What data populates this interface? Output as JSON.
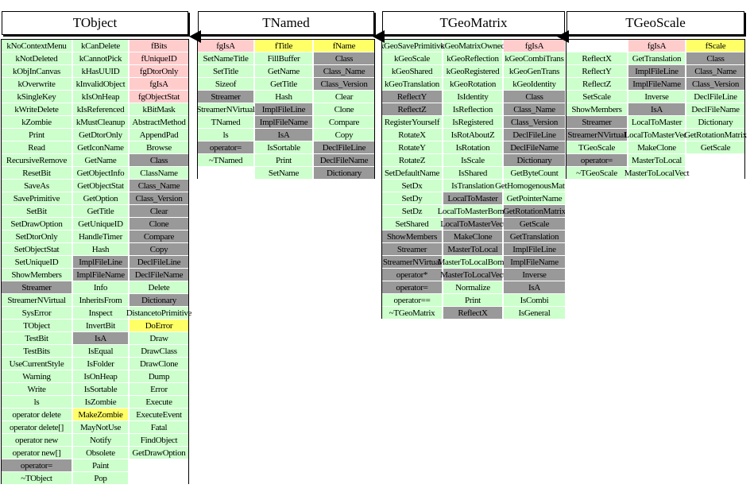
{
  "colors": {
    "g": "#ccffcc",
    "G": "#999999",
    "p": "#ffcccc",
    "y": "#ffff66",
    "w": "transparent"
  },
  "classes": [
    {
      "title": "TObject",
      "columns": [
        [
          [
            "kNoContextMenu",
            "g"
          ],
          [
            "kNotDeleted",
            "g"
          ],
          [
            "kObjInCanvas",
            "g"
          ],
          [
            "kOverwrite",
            "g"
          ],
          [
            "kSingleKey",
            "g"
          ],
          [
            "kWriteDelete",
            "g"
          ],
          [
            "kZombie",
            "g"
          ],
          [
            "Print",
            "g"
          ],
          [
            "Read",
            "g"
          ],
          [
            "RecursiveRemove",
            "g"
          ],
          [
            "ResetBit",
            "g"
          ],
          [
            "SaveAs",
            "g"
          ],
          [
            "SavePrimitive",
            "g"
          ],
          [
            "SetBit",
            "g"
          ],
          [
            "SetDrawOption",
            "g"
          ],
          [
            "SetDtorOnly",
            "g"
          ],
          [
            "SetObjectStat",
            "g"
          ],
          [
            "SetUniqueID",
            "g"
          ],
          [
            "ShowMembers",
            "g"
          ],
          [
            "Streamer",
            "G"
          ],
          [
            "StreamerNVirtual",
            "g"
          ],
          [
            "SysError",
            "g"
          ],
          [
            "TObject",
            "g"
          ],
          [
            "TestBit",
            "g"
          ],
          [
            "TestBits",
            "g"
          ],
          [
            "UseCurrentStyle",
            "g"
          ],
          [
            "Warning",
            "g"
          ],
          [
            "Write",
            "g"
          ],
          [
            "ls",
            "g"
          ],
          [
            "operator delete",
            "g"
          ],
          [
            "operator delete[]",
            "g"
          ],
          [
            "operator new",
            "g"
          ],
          [
            "operator new[]",
            "g"
          ],
          [
            "operator=",
            "G"
          ],
          [
            "~TObject",
            "g"
          ]
        ],
        [
          [
            "kCanDelete",
            "g"
          ],
          [
            "kCannotPick",
            "g"
          ],
          [
            "kHasUUID",
            "g"
          ],
          [
            "kInvalidObject",
            "g"
          ],
          [
            "kIsOnHeap",
            "g"
          ],
          [
            "kIsReferenced",
            "g"
          ],
          [
            "kMustCleanup",
            "g"
          ],
          [
            "GetDtorOnly",
            "g"
          ],
          [
            "GetIconName",
            "g"
          ],
          [
            "GetName",
            "g"
          ],
          [
            "GetObjectInfo",
            "g"
          ],
          [
            "GetObjectStat",
            "g"
          ],
          [
            "GetOption",
            "g"
          ],
          [
            "GetTitle",
            "g"
          ],
          [
            "GetUniqueID",
            "g"
          ],
          [
            "HandleTimer",
            "g"
          ],
          [
            "Hash",
            "g"
          ],
          [
            "ImplFileLine",
            "G"
          ],
          [
            "ImplFileName",
            "G"
          ],
          [
            "Info",
            "g"
          ],
          [
            "InheritsFrom",
            "g"
          ],
          [
            "Inspect",
            "g"
          ],
          [
            "InvertBit",
            "g"
          ],
          [
            "IsA",
            "G"
          ],
          [
            "IsEqual",
            "g"
          ],
          [
            "IsFolder",
            "g"
          ],
          [
            "IsOnHeap",
            "g"
          ],
          [
            "IsSortable",
            "g"
          ],
          [
            "IsZombie",
            "g"
          ],
          [
            "MakeZombie",
            "y"
          ],
          [
            "MayNotUse",
            "g"
          ],
          [
            "Notify",
            "g"
          ],
          [
            "Obsolete",
            "g"
          ],
          [
            "Paint",
            "g"
          ],
          [
            "Pop",
            "g"
          ]
        ],
        [
          [
            "fBits",
            "p"
          ],
          [
            "fUniqueID",
            "p"
          ],
          [
            "fgDtorOnly",
            "p"
          ],
          [
            "fgIsA",
            "p"
          ],
          [
            "fgObjectStat",
            "p"
          ],
          [
            "kBitMask",
            "g"
          ],
          [
            "AbstractMethod",
            "g"
          ],
          [
            "AppendPad",
            "g"
          ],
          [
            "Browse",
            "g"
          ],
          [
            "Class",
            "G"
          ],
          [
            "ClassName",
            "g"
          ],
          [
            "Class_Name",
            "G"
          ],
          [
            "Class_Version",
            "G"
          ],
          [
            "Clear",
            "G"
          ],
          [
            "Clone",
            "G"
          ],
          [
            "Compare",
            "G"
          ],
          [
            "Copy",
            "G"
          ],
          [
            "DeclFileLine",
            "G"
          ],
          [
            "DeclFileName",
            "G"
          ],
          [
            "Delete",
            "g"
          ],
          [
            "Dictionary",
            "G"
          ],
          [
            "DistancetoPrimitive",
            "g"
          ],
          [
            "DoError",
            "y"
          ],
          [
            "Draw",
            "g"
          ],
          [
            "DrawClass",
            "g"
          ],
          [
            "DrawClone",
            "g"
          ],
          [
            "Dump",
            "g"
          ],
          [
            "Error",
            "g"
          ],
          [
            "Execute",
            "g"
          ],
          [
            "ExecuteEvent",
            "g"
          ],
          [
            "Fatal",
            "g"
          ],
          [
            "FindObject",
            "g"
          ],
          [
            "GetDrawOption",
            "g"
          ],
          [
            "",
            "w"
          ],
          [
            "",
            "w"
          ]
        ]
      ]
    },
    {
      "title": "TNamed",
      "columns": [
        [
          [
            "fgIsA",
            "p"
          ],
          [
            "SetNameTitle",
            "g"
          ],
          [
            "SetTitle",
            "g"
          ],
          [
            "Sizeof",
            "g"
          ],
          [
            "Streamer",
            "G"
          ],
          [
            "StreamerNVirtual",
            "g"
          ],
          [
            "TNamed",
            "g"
          ],
          [
            "ls",
            "g"
          ],
          [
            "operator=",
            "G"
          ],
          [
            "~TNamed",
            "g"
          ],
          [
            "",
            "w"
          ]
        ],
        [
          [
            "fTitle",
            "y"
          ],
          [
            "FillBuffer",
            "g"
          ],
          [
            "GetName",
            "g"
          ],
          [
            "GetTitle",
            "g"
          ],
          [
            "Hash",
            "g"
          ],
          [
            "ImplFileLine",
            "G"
          ],
          [
            "ImplFileName",
            "G"
          ],
          [
            "IsA",
            "G"
          ],
          [
            "IsSortable",
            "g"
          ],
          [
            "Print",
            "g"
          ],
          [
            "SetName",
            "g"
          ]
        ],
        [
          [
            "fName",
            "y"
          ],
          [
            "Class",
            "G"
          ],
          [
            "Class_Name",
            "G"
          ],
          [
            "Class_Version",
            "G"
          ],
          [
            "Clear",
            "g"
          ],
          [
            "Clone",
            "g"
          ],
          [
            "Compare",
            "g"
          ],
          [
            "Copy",
            "g"
          ],
          [
            "DeclFileLine",
            "G"
          ],
          [
            "DeclFileName",
            "G"
          ],
          [
            "Dictionary",
            "G"
          ]
        ]
      ]
    },
    {
      "title": "TGeoMatrix",
      "columns": [
        [
          [
            "kGeoSavePrimitive",
            "g"
          ],
          [
            "kGeoScale",
            "g"
          ],
          [
            "kGeoShared",
            "g"
          ],
          [
            "kGeoTranslation",
            "g"
          ],
          [
            "ReflectY",
            "G"
          ],
          [
            "ReflectZ",
            "G"
          ],
          [
            "RegisterYourself",
            "g"
          ],
          [
            "RotateX",
            "g"
          ],
          [
            "RotateY",
            "g"
          ],
          [
            "RotateZ",
            "g"
          ],
          [
            "SetDefaultName",
            "g"
          ],
          [
            "SetDx",
            "g"
          ],
          [
            "SetDy",
            "g"
          ],
          [
            "SetDz",
            "g"
          ],
          [
            "SetShared",
            "g"
          ],
          [
            "ShowMembers",
            "G"
          ],
          [
            "Streamer",
            "G"
          ],
          [
            "StreamerNVirtual",
            "G"
          ],
          [
            "operator*",
            "G"
          ],
          [
            "operator=",
            "G"
          ],
          [
            "operator==",
            "g"
          ],
          [
            "~TGeoMatrix",
            "g"
          ]
        ],
        [
          [
            "kGeoMatrixOwned",
            "g"
          ],
          [
            "kGeoReflection",
            "g"
          ],
          [
            "kGeoRegistered",
            "g"
          ],
          [
            "kGeoRotation",
            "g"
          ],
          [
            "IsIdentity",
            "g"
          ],
          [
            "IsReflection",
            "g"
          ],
          [
            "IsRegistered",
            "g"
          ],
          [
            "IsRotAboutZ",
            "g"
          ],
          [
            "IsRotation",
            "g"
          ],
          [
            "IsScale",
            "g"
          ],
          [
            "IsShared",
            "g"
          ],
          [
            "IsTranslation",
            "g"
          ],
          [
            "LocalToMaster",
            "G"
          ],
          [
            "LocalToMasterBomb",
            "g"
          ],
          [
            "LocalToMasterVect",
            "G"
          ],
          [
            "MakeClone",
            "G"
          ],
          [
            "MasterToLocal",
            "G"
          ],
          [
            "MasterToLocalBomb",
            "g"
          ],
          [
            "MasterToLocalVect",
            "G"
          ],
          [
            "Normalize",
            "g"
          ],
          [
            "Print",
            "g"
          ],
          [
            "ReflectX",
            "G"
          ]
        ],
        [
          [
            "fgIsA",
            "p"
          ],
          [
            "kGeoCombiTrans",
            "g"
          ],
          [
            "kGeoGenTrans",
            "g"
          ],
          [
            "kGeoIdentity",
            "g"
          ],
          [
            "Class",
            "G"
          ],
          [
            "Class_Name",
            "G"
          ],
          [
            "Class_Version",
            "G"
          ],
          [
            "DeclFileLine",
            "G"
          ],
          [
            "DeclFileName",
            "G"
          ],
          [
            "Dictionary",
            "G"
          ],
          [
            "GetByteCount",
            "g"
          ],
          [
            "GetHomogenousMatrix",
            "g"
          ],
          [
            "GetPointerName",
            "g"
          ],
          [
            "GetRotationMatrix",
            "G"
          ],
          [
            "GetScale",
            "G"
          ],
          [
            "GetTranslation",
            "G"
          ],
          [
            "ImplFileLine",
            "G"
          ],
          [
            "ImplFileName",
            "G"
          ],
          [
            "Inverse",
            "G"
          ],
          [
            "IsA",
            "G"
          ],
          [
            "IsCombi",
            "g"
          ],
          [
            "IsGeneral",
            "g"
          ]
        ]
      ]
    },
    {
      "title": "TGeoScale",
      "columns": [
        [
          [
            "",
            "w"
          ],
          [
            "ReflectX",
            "g"
          ],
          [
            "ReflectY",
            "g"
          ],
          [
            "ReflectZ",
            "g"
          ],
          [
            "SetScale",
            "g"
          ],
          [
            "ShowMembers",
            "g"
          ],
          [
            "Streamer",
            "G"
          ],
          [
            "StreamerNVirtual",
            "G"
          ],
          [
            "TGeoScale",
            "g"
          ],
          [
            "operator=",
            "G"
          ],
          [
            "~TGeoScale",
            "g"
          ]
        ],
        [
          [
            "fgIsA",
            "p"
          ],
          [
            "GetTranslation",
            "g"
          ],
          [
            "ImplFileLine",
            "G"
          ],
          [
            "ImplFileName",
            "G"
          ],
          [
            "Inverse",
            "g"
          ],
          [
            "IsA",
            "G"
          ],
          [
            "LocalToMaster",
            "g"
          ],
          [
            "LocalToMasterVect",
            "g"
          ],
          [
            "MakeClone",
            "g"
          ],
          [
            "MasterToLocal",
            "g"
          ],
          [
            "MasterToLocalVect",
            "g"
          ]
        ],
        [
          [
            "fScale",
            "y"
          ],
          [
            "Class",
            "G"
          ],
          [
            "Class_Name",
            "G"
          ],
          [
            "Class_Version",
            "G"
          ],
          [
            "DeclFileLine",
            "g"
          ],
          [
            "DeclFileName",
            "g"
          ],
          [
            "Dictionary",
            "g"
          ],
          [
            "GetRotationMatrix",
            "g"
          ],
          [
            "GetScale",
            "g"
          ],
          [
            "",
            "w"
          ],
          [
            "",
            "w"
          ]
        ]
      ]
    }
  ]
}
